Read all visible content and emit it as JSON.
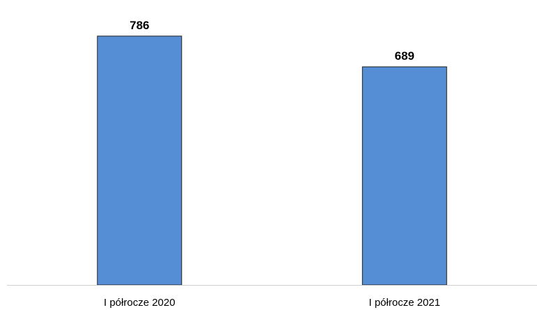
{
  "chart_data": {
    "type": "bar",
    "categories": [
      "I półrocze 2020",
      "I półrocze 2021"
    ],
    "values": [
      786,
      689
    ],
    "data_labels": [
      "786",
      "689"
    ],
    "title": "",
    "xlabel": "",
    "ylabel": "",
    "ylim": [
      0,
      900
    ],
    "grid": false,
    "legend": "none"
  },
  "colors": {
    "bar_fill": "#558ed5",
    "bar_stroke": "#1f1f1f",
    "axis": "#d0d0d0"
  }
}
